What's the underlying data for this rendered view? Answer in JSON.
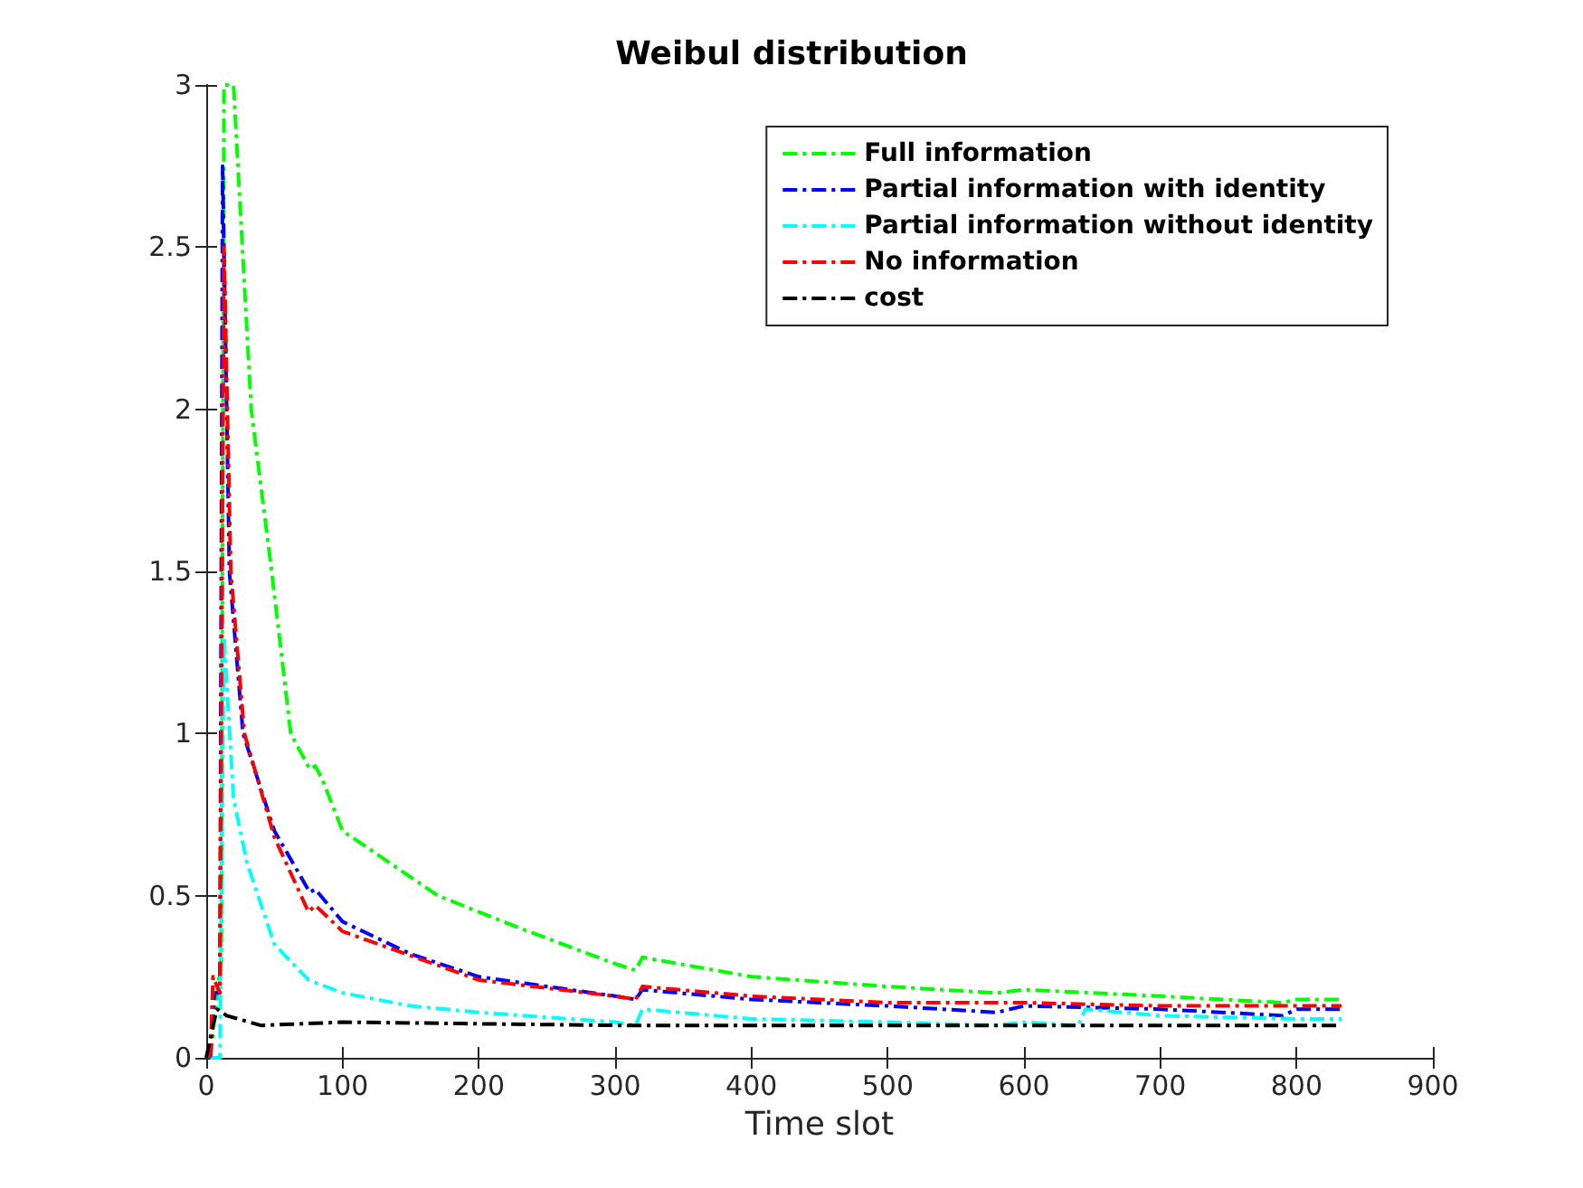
{
  "chart_data": {
    "type": "line",
    "title": "Weibul distribution",
    "xlabel": "Time slot",
    "line_style": "dashdot",
    "legend": "top right",
    "grid": false,
    "xlim": [
      0,
      900
    ],
    "xticks": [
      0,
      100,
      200,
      300,
      400,
      500,
      600,
      700,
      800,
      900
    ],
    "ylim": [
      0,
      3
    ],
    "yticks": [
      0,
      0.5,
      1,
      1.5,
      2,
      2.5,
      3
    ],
    "series": [
      {
        "name": "Full information",
        "color": "#00ff00",
        "x": [
          3,
          8,
          11,
          13,
          20,
          33,
          48,
          62,
          76,
          80,
          85,
          100,
          170,
          230,
          300,
          315,
          320,
          400,
          500,
          580,
          600,
          700,
          790,
          800,
          833
        ],
        "values": [
          0,
          0.2,
          0.3,
          3,
          3,
          2,
          1.5,
          1,
          0.89,
          0.9,
          0.86,
          0.7,
          0.5,
          0.4,
          0.29,
          0.27,
          0.31,
          0.25,
          0.22,
          0.2,
          0.21,
          0.19,
          0.17,
          0.18,
          0.18
        ]
      },
      {
        "name": "Partial information with identity",
        "color": "#0000ff",
        "x": [
          3,
          6,
          10,
          12,
          15,
          17,
          27,
          50,
          76,
          80,
          100,
          150,
          200,
          300,
          315,
          320,
          400,
          500,
          580,
          600,
          700,
          790,
          800,
          833
        ],
        "values": [
          0,
          0.2,
          0.2,
          2.75,
          2,
          1.5,
          1,
          0.7,
          0.51,
          0.52,
          0.42,
          0.32,
          0.25,
          0.19,
          0.18,
          0.21,
          0.18,
          0.16,
          0.14,
          0.16,
          0.15,
          0.13,
          0.15,
          0.15
        ]
      },
      {
        "name": "Partial information without identity",
        "color": "#00ffff",
        "x": [
          3,
          10,
          13,
          20,
          30,
          50,
          75,
          100,
          150,
          200,
          300,
          315,
          320,
          400,
          500,
          580,
          600,
          640,
          645,
          700,
          800,
          833
        ],
        "values": [
          0,
          0,
          1.3,
          0.8,
          0.6,
          0.35,
          0.24,
          0.2,
          0.16,
          0.14,
          0.11,
          0.1,
          0.15,
          0.12,
          0.11,
          0.1,
          0.11,
          0.1,
          0.15,
          0.13,
          0.12,
          0.12
        ]
      },
      {
        "name": "No information",
        "color": "#ff0000",
        "x": [
          3,
          5,
          10,
          13,
          16,
          18,
          28,
          50,
          75,
          80,
          100,
          200,
          300,
          315,
          320,
          400,
          500,
          600,
          700,
          800,
          833
        ],
        "values": [
          0,
          0.25,
          0.2,
          2.5,
          1.9,
          1.5,
          1,
          0.68,
          0.45,
          0.47,
          0.39,
          0.24,
          0.19,
          0.18,
          0.22,
          0.19,
          0.17,
          0.17,
          0.16,
          0.16,
          0.16
        ]
      },
      {
        "name": "cost",
        "color": "#000000",
        "x": [
          0,
          5,
          8,
          15,
          40,
          100,
          300,
          833
        ],
        "values": [
          0,
          0.1,
          0.15,
          0.13,
          0.1,
          0.11,
          0.1,
          0.1
        ]
      }
    ]
  }
}
